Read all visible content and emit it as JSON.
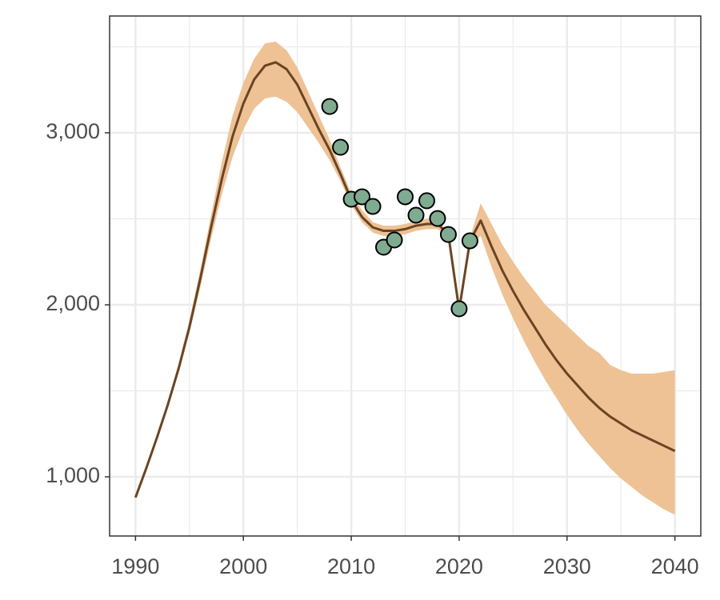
{
  "chart_data": {
    "type": "line",
    "x": [
      1990,
      1991,
      1992,
      1993,
      1994,
      1995,
      1996,
      1997,
      1998,
      1999,
      2000,
      2001,
      2002,
      2003,
      2004,
      2005,
      2006,
      2007,
      2008,
      2009,
      2010,
      2011,
      2012,
      2013,
      2014,
      2015,
      2016,
      2017,
      2018,
      2019,
      2020,
      2021,
      2022,
      2023,
      2024,
      2025,
      2026,
      2027,
      2028,
      2029,
      2030,
      2031,
      2032,
      2033,
      2034,
      2035,
      2036,
      2037,
      2038,
      2039,
      2040
    ],
    "line": {
      "color": "#6b4423",
      "values": [
        880,
        1050,
        1230,
        1420,
        1630,
        1870,
        2150,
        2450,
        2730,
        2980,
        3170,
        3310,
        3390,
        3410,
        3370,
        3280,
        3150,
        3020,
        2900,
        2760,
        2610,
        2510,
        2450,
        2430,
        2430,
        2440,
        2460,
        2470,
        2470,
        2410,
        1970,
        2370,
        2490,
        2340,
        2200,
        2080,
        1970,
        1870,
        1770,
        1680,
        1600,
        1530,
        1460,
        1400,
        1350,
        1310,
        1270,
        1240,
        1210,
        1180,
        1150
      ]
    },
    "band": {
      "color": "#eec295",
      "upper": [
        880,
        1050,
        1240,
        1440,
        1660,
        1910,
        2200,
        2520,
        2830,
        3100,
        3290,
        3430,
        3520,
        3530,
        3480,
        3380,
        3240,
        3100,
        2960,
        2800,
        2650,
        2550,
        2480,
        2460,
        2460,
        2470,
        2490,
        2500,
        2500,
        2420,
        1980,
        2390,
        2590,
        2470,
        2350,
        2250,
        2160,
        2080,
        2000,
        1940,
        1880,
        1820,
        1760,
        1720,
        1650,
        1620,
        1600,
        1600,
        1600,
        1610,
        1620
      ],
      "lower": [
        880,
        1040,
        1220,
        1400,
        1610,
        1840,
        2100,
        2380,
        2640,
        2860,
        3020,
        3140,
        3200,
        3210,
        3180,
        3120,
        3030,
        2940,
        2840,
        2720,
        2580,
        2480,
        2420,
        2400,
        2400,
        2410,
        2430,
        2440,
        2440,
        2400,
        1960,
        2350,
        2400,
        2220,
        2060,
        1920,
        1790,
        1670,
        1560,
        1460,
        1360,
        1270,
        1190,
        1120,
        1050,
        990,
        940,
        890,
        850,
        810,
        780
      ]
    },
    "points": {
      "color": "#7fab91",
      "x": [
        2008,
        2009,
        2010,
        2011,
        2012,
        2013,
        2014,
        2015,
        2016,
        2017,
        2018,
        2019,
        2020,
        2021
      ],
      "values": [
        3153,
        2916,
        2614,
        2628,
        2572,
        2335,
        2377,
        2628,
        2521,
        2605,
        2502,
        2409,
        1977,
        2372
      ]
    },
    "xlim": [
      1987.6,
      2042.4
    ],
    "ylim": [
      656,
      3679
    ],
    "xticks": [
      1990,
      2000,
      2010,
      2020,
      2030,
      2040
    ],
    "yticks": [
      {
        "value": 1000,
        "label": "1,000"
      },
      {
        "value": 2000,
        "label": "2,000"
      },
      {
        "value": 3000,
        "label": "3,000"
      }
    ],
    "xminor": [
      1995,
      2005,
      2015,
      2025,
      2035
    ],
    "yminor": [
      1500,
      2500,
      3500
    ],
    "grid": true
  }
}
